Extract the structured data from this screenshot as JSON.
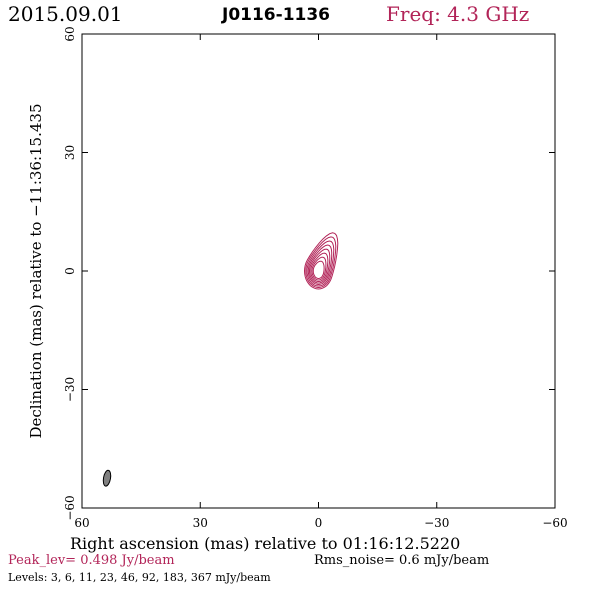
{
  "header": {
    "date": "2015.09.01",
    "source": "J0116-1136",
    "freq": "Freq: 4.3 GHz"
  },
  "axes": {
    "xlabel": "Right ascension (mas) relative to 01:16:12.5220",
    "ylabel": "Declination (mas) relative to −11:36:15.435"
  },
  "footer": {
    "peak": "Peak_lev=  0.498 Jy/beam",
    "rms": "Rms_noise=  0.6 mJy/beam",
    "levels": "Levels:   3,   6,  11,  23,  46,  92, 183, 367  mJy/beam"
  },
  "colors": {
    "contour": "#b22458",
    "beam": "#808080"
  },
  "chart_data": {
    "type": "contour",
    "xlim": [
      60,
      -60
    ],
    "ylim": [
      -60,
      60
    ],
    "xticks": [
      60,
      30,
      0,
      -30,
      -60
    ],
    "yticks": [
      60,
      30,
      0,
      -30,
      -60
    ],
    "xtick_labels": [
      "60",
      "30",
      "0",
      "−30",
      "−60"
    ],
    "ytick_labels": [
      "60",
      "30",
      "0",
      "−30",
      "−60"
    ],
    "contour_levels_mJy": [
      3,
      6,
      11,
      23,
      46,
      92,
      183,
      367
    ],
    "peak_position_mas": [
      0,
      0
    ],
    "beam": {
      "x": 60,
      "y": -56,
      "major": 4.0,
      "minor": 2.0,
      "pa_deg": 10
    }
  }
}
